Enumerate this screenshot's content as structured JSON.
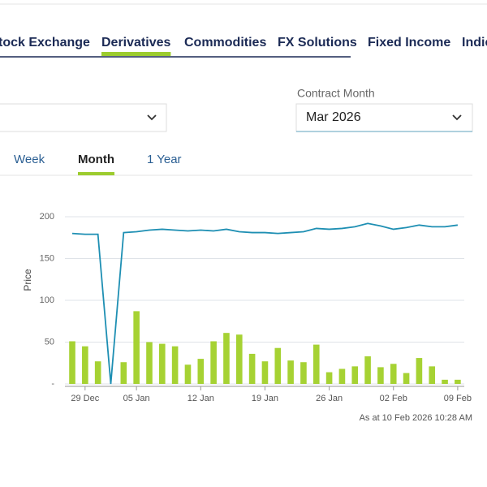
{
  "nav": {
    "items": [
      "tock Exchange",
      "Derivatives",
      "Commodities",
      "FX Solutions",
      "Fixed Income",
      "Indic"
    ],
    "active": 1
  },
  "filters": {
    "contract_month": {
      "label": "Contract Month",
      "value": "Mar 2026"
    }
  },
  "tabs": {
    "items": [
      "Week",
      "Month",
      "1 Year"
    ],
    "active": 1
  },
  "chart_data": {
    "type": "combo",
    "y_label": "Price",
    "categories": [
      null,
      "29 Dec",
      null,
      null,
      null,
      "05 Jan",
      null,
      null,
      null,
      null,
      "12 Jan",
      null,
      null,
      null,
      null,
      "19 Jan",
      null,
      null,
      null,
      null,
      "26 Jan",
      null,
      null,
      null,
      null,
      "02 Feb",
      null,
      null,
      null,
      null,
      "09 Feb"
    ],
    "series": [
      {
        "type": "line",
        "color": "#1e8fb3",
        "values": [
          180,
          179,
          179,
          0,
          181,
          182,
          184,
          185,
          184,
          183,
          184,
          183,
          185,
          182,
          181,
          181,
          180,
          181,
          182,
          186,
          185,
          186,
          188,
          192,
          189,
          185,
          187,
          190,
          188,
          188,
          190
        ]
      },
      {
        "type": "bar",
        "color": "#a6d233",
        "values": [
          51,
          45,
          27,
          0,
          26,
          87,
          50,
          48,
          45,
          23,
          30,
          51,
          61,
          59,
          36,
          27,
          43,
          28,
          26,
          47,
          14,
          18,
          21,
          33,
          20,
          24,
          13,
          31,
          21,
          5,
          5
        ]
      }
    ],
    "ylim": [
      0,
      200
    ],
    "yticks": [
      {
        "value": 0,
        "label": "-"
      },
      50,
      100,
      150,
      200
    ],
    "grid": true,
    "footnote": "As at 10 Feb 2026 10:28 AM"
  }
}
